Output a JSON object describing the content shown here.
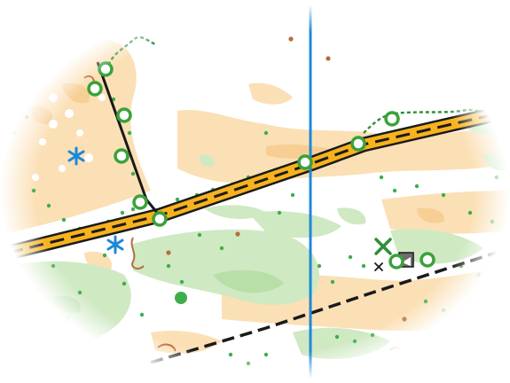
{
  "map": {
    "colors": {
      "paper": "#ffffff",
      "open_land": "#f9d9a8",
      "rough_open": "#fbe3bf",
      "green": "#cce8c0",
      "green_dark": "#b4dca4",
      "green_dot": "#3dae4a",
      "track_black": "#1a1a1a",
      "road_fill": "#f7b21d",
      "magnetic_north": "#1e88d8",
      "brown_feature": "#b86d3a",
      "blue_feature": "#1e88d8",
      "control_ring": "#3aa23a",
      "fence_green": "#2f8f38"
    },
    "symbols": {
      "magnetic_north_line": "magnetic-north-line",
      "road": "paved-road",
      "path_upper": "footpath",
      "path_lower": "footpath",
      "track_short": "track",
      "vegetation_boundary": "green-dashed-boundary",
      "special_feature_x": "green-x-feature",
      "small_x": "black-x-feature",
      "building": "small-building-icon",
      "star_symbols": "blue-star-icon"
    }
  }
}
